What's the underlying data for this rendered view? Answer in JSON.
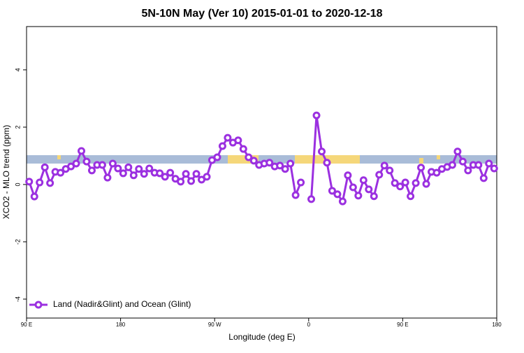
{
  "chart_data": {
    "type": "line",
    "title": "5N-10N May (Ver 10)   2015-01-01 to 2020-12-18",
    "x_label": "Longitude (deg E)",
    "y_label": "XCO2 - MLO trend (ppm)",
    "x": [
      92.5,
      97.5,
      102.5,
      107.5,
      112.5,
      117.5,
      122.5,
      127.5,
      132.5,
      137.5,
      142.5,
      147.5,
      152.5,
      157.5,
      162.5,
      167.5,
      172.5,
      177.5,
      182.5,
      187.5,
      192.5,
      197.5,
      202.5,
      207.5,
      212.5,
      217.5,
      222.5,
      227.5,
      232.5,
      237.5,
      242.5,
      247.5,
      252.5,
      257.5,
      262.5,
      267.5,
      272.5,
      277.5,
      282.5,
      287.5,
      292.5,
      297.5,
      302.5,
      307.5,
      312.5,
      317.5,
      322.5,
      327.5,
      332.5,
      337.5,
      342.5,
      347.5,
      352.5,
      357.5,
      362.5,
      367.5,
      372.5,
      377.5,
      382.5,
      387.5,
      392.5,
      397.5,
      402.5,
      407.5,
      412.5,
      417.5,
      422.5,
      427.5,
      432.5,
      437.5,
      442.5,
      447.5,
      452.5,
      457.5,
      462.5,
      467.5,
      472.5,
      477.5,
      482.5,
      487.5,
      492.5,
      497.5,
      502.5,
      507.5,
      512.5,
      517.5,
      522.5,
      527.5,
      532.5,
      537.5
    ],
    "series": [
      {
        "name": "Land (Nadir&Glint) and Ocean (Glint)",
        "color": "#9b30e0",
        "values": [
          0.1,
          -0.42,
          0.07,
          0.6,
          0.05,
          0.44,
          0.41,
          0.54,
          0.63,
          0.73,
          1.17,
          0.8,
          0.49,
          0.68,
          0.68,
          0.24,
          0.73,
          0.56,
          0.39,
          0.6,
          0.32,
          0.54,
          0.37,
          0.56,
          0.41,
          0.39,
          0.27,
          0.41,
          0.2,
          0.1,
          0.37,
          0.12,
          0.37,
          0.17,
          0.27,
          0.85,
          0.95,
          1.34,
          1.63,
          1.46,
          1.54,
          1.24,
          0.95,
          0.83,
          0.68,
          0.73,
          0.76,
          0.63,
          0.66,
          0.54,
          0.73,
          -0.37,
          0.07,
          null,
          -0.51,
          2.41,
          1.15,
          0.76,
          -0.22,
          -0.34,
          -0.59,
          0.32,
          -0.1,
          -0.39,
          0.15,
          -0.17,
          -0.41,
          0.34,
          0.66,
          0.49,
          0.05,
          -0.07,
          0.07,
          -0.41,
          0.05,
          0.59,
          0.02,
          0.44,
          0.41,
          0.54,
          0.61,
          0.68,
          1.15,
          0.8,
          0.49,
          0.68,
          0.68,
          0.22,
          0.73,
          0.56
        ]
      }
    ],
    "xlim": [
      90,
      540
    ],
    "xticks": [
      {
        "value": 90,
        "label": "90 E"
      },
      180,
      {
        "value": 270,
        "label": "90 W"
      },
      {
        "value": 360,
        "label": "0"
      },
      {
        "value": 450,
        "label": "90 E"
      },
      {
        "value": 540,
        "label": "180"
      }
    ],
    "ylim": [
      -4.66,
      5.51
    ],
    "yticks": [
      -4,
      -2,
      0,
      2,
      4
    ],
    "legend": "bottom-left"
  }
}
